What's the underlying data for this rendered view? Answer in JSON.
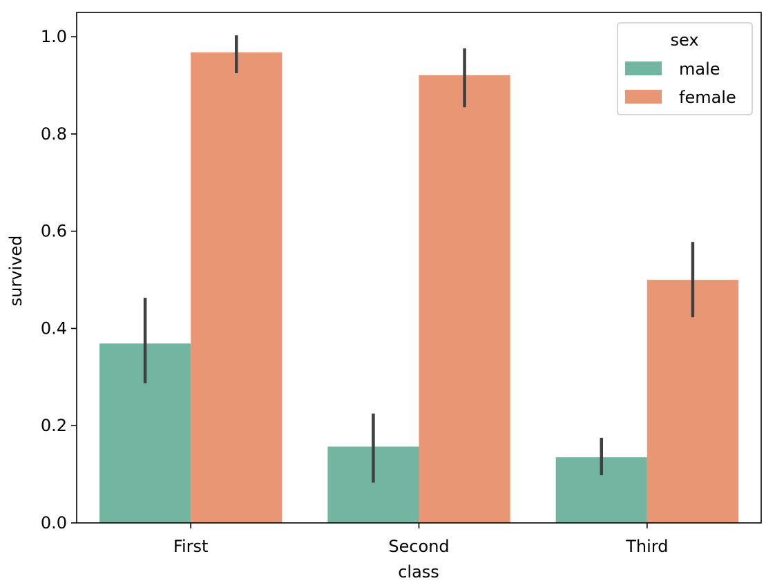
{
  "chart_data": {
    "type": "bar",
    "title": "",
    "xlabel": "class",
    "ylabel": "survived",
    "categories": [
      "First",
      "Second",
      "Third"
    ],
    "ylim": [
      0.0,
      1.05
    ],
    "yticks": [
      0.0,
      0.2,
      0.4,
      0.6,
      0.8,
      1.0
    ],
    "ytick_labels": [
      "0.0",
      "0.2",
      "0.4",
      "0.6",
      "0.8",
      "1.0"
    ],
    "grid": false,
    "series": [
      {
        "name": "male",
        "color": "#72b6a1",
        "values": [
          0.369,
          0.157,
          0.135
        ],
        "error_low": [
          0.287,
          0.083,
          0.098
        ],
        "error_high": [
          0.463,
          0.225,
          0.175
        ]
      },
      {
        "name": "female",
        "color": "#e99675",
        "values": [
          0.968,
          0.921,
          0.5
        ],
        "error_low": [
          0.925,
          0.855,
          0.423
        ],
        "error_high": [
          1.003,
          0.976,
          0.578
        ]
      }
    ],
    "error_bar_color": "#404040",
    "legend": {
      "title": "sex",
      "placement": "top-right",
      "entries": [
        "male",
        "female"
      ]
    }
  }
}
